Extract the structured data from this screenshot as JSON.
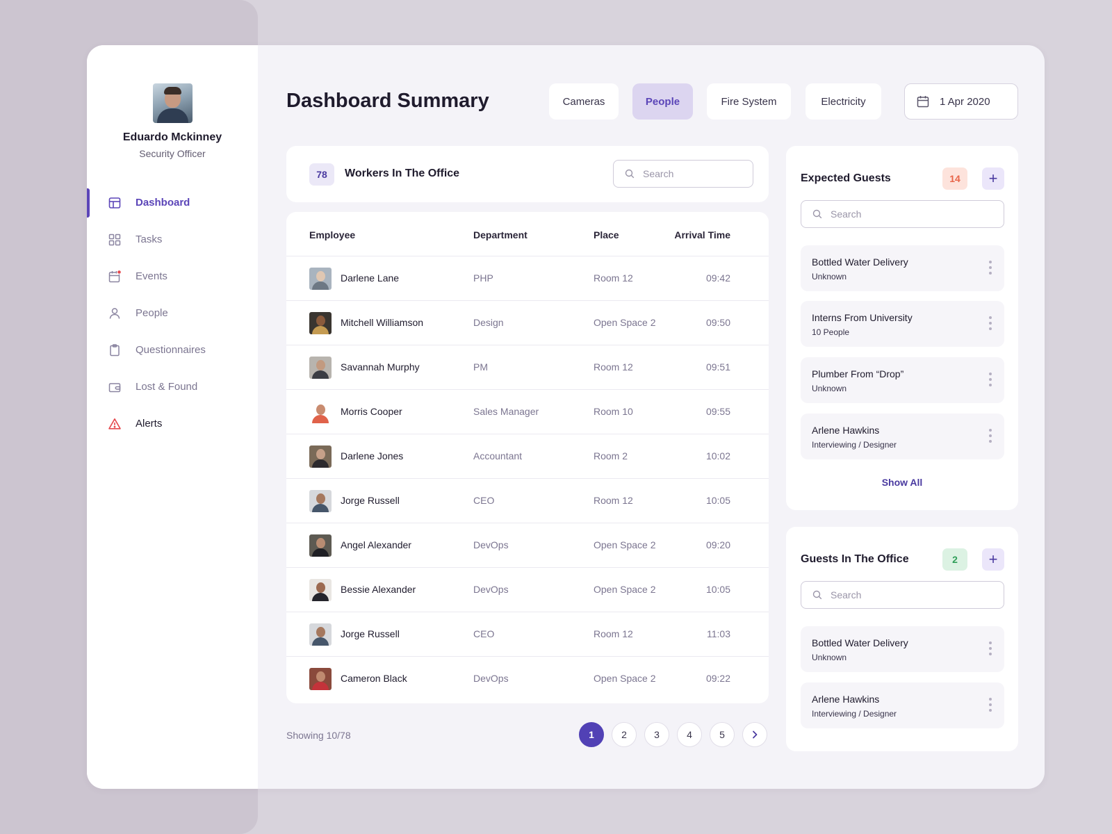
{
  "sidebar": {
    "user": {
      "name": "Eduardo Mckinney",
      "role": "Security Officer"
    },
    "nav": [
      {
        "label": "Dashboard",
        "icon": "dashboard-icon",
        "active": true
      },
      {
        "label": "Tasks",
        "icon": "grid-icon"
      },
      {
        "label": "Events",
        "icon": "calendar-icon"
      },
      {
        "label": "People",
        "icon": "user-icon"
      },
      {
        "label": "Questionnaires",
        "icon": "clipboard-icon"
      },
      {
        "label": "Lost & Found",
        "icon": "wallet-icon"
      },
      {
        "label": "Alerts",
        "icon": "warning-icon"
      }
    ]
  },
  "header": {
    "title": "Dashboard Summary",
    "tabs": [
      {
        "label": "Cameras"
      },
      {
        "label": "People",
        "active": true
      },
      {
        "label": "Fire System"
      },
      {
        "label": "Electricity"
      }
    ],
    "date": "1 Apr 2020"
  },
  "workers": {
    "count": "78",
    "title": "Workers In The Office",
    "search_placeholder": "Search",
    "columns": [
      "Employee",
      "Department",
      "Place",
      "Arrival Time"
    ],
    "rows": [
      {
        "name": "Darlene Lane",
        "department": "PHP",
        "place": "Room 12",
        "time": "09:42"
      },
      {
        "name": "Mitchell Williamson",
        "department": "Design",
        "place": "Open Space 2",
        "time": "09:50"
      },
      {
        "name": "Savannah Murphy",
        "department": "PM",
        "place": "Room 12",
        "time": "09:51"
      },
      {
        "name": "Morris Cooper",
        "department": "Sales Manager",
        "place": "Room 10",
        "time": "09:55"
      },
      {
        "name": "Darlene Jones",
        "department": "Accountant",
        "place": "Room 2",
        "time": "10:02"
      },
      {
        "name": "Jorge Russell",
        "department": "CEO",
        "place": "Room 12",
        "time": "10:05"
      },
      {
        "name": "Angel Alexander",
        "department": "DevOps",
        "place": "Open Space 2",
        "time": "09:20"
      },
      {
        "name": "Bessie Alexander",
        "department": "DevOps",
        "place": "Open Space 2",
        "time": "10:05"
      },
      {
        "name": "Jorge Russell",
        "department": "CEO",
        "place": "Room 12",
        "time": "11:03"
      },
      {
        "name": "Cameron Black",
        "department": "DevOps",
        "place": "Open Space 2",
        "time": "09:22"
      }
    ],
    "showing": "Showing 10/78",
    "pages": [
      "1",
      "2",
      "3",
      "4",
      "5"
    ]
  },
  "expected_guests": {
    "title": "Expected Guests",
    "count": "14",
    "search_placeholder": "Search",
    "items": [
      {
        "title": "Bottled Water Delivery",
        "subtitle": "Unknown"
      },
      {
        "title": "Interns From University",
        "subtitle": "10 People"
      },
      {
        "title": "Plumber From “Drop”",
        "subtitle": "Unknown"
      },
      {
        "title": "Arlene Hawkins",
        "subtitle": "Interviewing / Designer"
      }
    ],
    "show_all": "Show All"
  },
  "office_guests": {
    "title": "Guests In The Office",
    "count": "2",
    "search_placeholder": "Search",
    "items": [
      {
        "title": "Bottled Water Delivery",
        "subtitle": "Unknown"
      },
      {
        "title": "Arlene Hawkins",
        "subtitle": "Interviewing / Designer"
      }
    ]
  },
  "colors": {
    "accent": "#5b45b8",
    "expected_badge_bg": "#fde3dc",
    "expected_badge_fg": "#e8664a",
    "office_badge_bg": "#dcf2e3",
    "office_badge_fg": "#2e9e58",
    "alert": "#e5484d"
  }
}
